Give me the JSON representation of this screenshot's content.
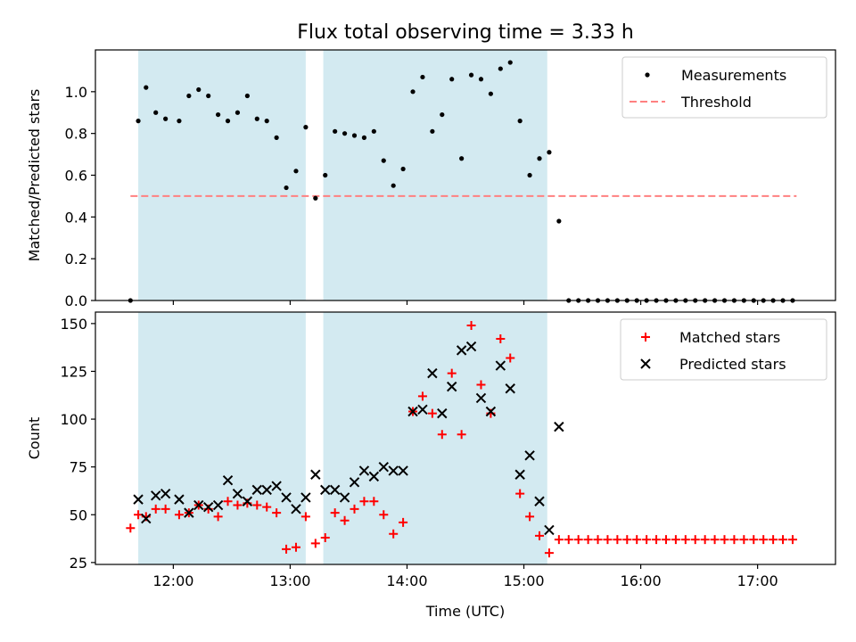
{
  "figure": {
    "title": "Flux total observing time = 3.33 h"
  },
  "chart_data": [
    {
      "type": "scatter",
      "ylabel": "Matched/Predicted stars",
      "xlabel": "",
      "xlim": [
        "11:20",
        "17:40"
      ],
      "ylim": [
        0,
        1.2
      ],
      "yticks": [
        "0.0",
        "0.2",
        "0.4",
        "0.6",
        "0.8",
        "1.0"
      ],
      "xticks": [
        "12:00",
        "13:00",
        "14:00",
        "15:00",
        "16:00",
        "17:00"
      ],
      "xtick_labels_visible": false,
      "legend": {
        "placement": "top-right",
        "entries": [
          "Measurements",
          "Threshold"
        ]
      },
      "shaded_intervals": [
        [
          "11:42",
          "13:08"
        ],
        [
          "13:17",
          "15:12"
        ]
      ],
      "threshold": {
        "name": "Threshold",
        "value": 0.5,
        "x_range": [
          "11:38",
          "17:20"
        ],
        "color": "#ff8080",
        "style": "dashed"
      },
      "series": [
        {
          "name": "Measurements",
          "marker": "dot",
          "color": "#000000",
          "points": [
            [
              "11:38",
              0.0
            ],
            [
              "11:42",
              0.86
            ],
            [
              "11:46",
              1.02
            ],
            [
              "11:51",
              0.9
            ],
            [
              "11:56",
              0.87
            ],
            [
              "12:03",
              0.86
            ],
            [
              "12:08",
              0.98
            ],
            [
              "12:13",
              1.01
            ],
            [
              "12:18",
              0.98
            ],
            [
              "12:23",
              0.89
            ],
            [
              "12:28",
              0.86
            ],
            [
              "12:33",
              0.9
            ],
            [
              "12:38",
              0.98
            ],
            [
              "12:43",
              0.87
            ],
            [
              "12:48",
              0.86
            ],
            [
              "12:53",
              0.78
            ],
            [
              "12:58",
              0.54
            ],
            [
              "13:03",
              0.62
            ],
            [
              "13:08",
              0.83
            ],
            [
              "13:13",
              0.49
            ],
            [
              "13:18",
              0.6
            ],
            [
              "13:23",
              0.81
            ],
            [
              "13:28",
              0.8
            ],
            [
              "13:33",
              0.79
            ],
            [
              "13:38",
              0.78
            ],
            [
              "13:43",
              0.81
            ],
            [
              "13:48",
              0.67
            ],
            [
              "13:53",
              0.55
            ],
            [
              "13:58",
              0.63
            ],
            [
              "14:03",
              1.0
            ],
            [
              "14:08",
              1.07
            ],
            [
              "14:13",
              0.81
            ],
            [
              "14:18",
              0.89
            ],
            [
              "14:23",
              1.06
            ],
            [
              "14:28",
              0.68
            ],
            [
              "14:33",
              1.08
            ],
            [
              "14:38",
              1.06
            ],
            [
              "14:43",
              0.99
            ],
            [
              "14:48",
              1.11
            ],
            [
              "14:53",
              1.14
            ],
            [
              "14:58",
              0.86
            ],
            [
              "15:03",
              0.6
            ],
            [
              "15:08",
              0.68
            ],
            [
              "15:13",
              0.71
            ],
            [
              "15:18",
              0.38
            ],
            [
              "15:23",
              0.0
            ],
            [
              "15:28",
              0.0
            ],
            [
              "15:33",
              0.0
            ],
            [
              "15:38",
              0.0
            ],
            [
              "15:43",
              0.0
            ],
            [
              "15:48",
              0.0
            ],
            [
              "15:53",
              0.0
            ],
            [
              "15:58",
              0.0
            ],
            [
              "16:03",
              0.0
            ],
            [
              "16:08",
              0.0
            ],
            [
              "16:13",
              0.0
            ],
            [
              "16:18",
              0.0
            ],
            [
              "16:23",
              0.0
            ],
            [
              "16:28",
              0.0
            ],
            [
              "16:33",
              0.0
            ],
            [
              "16:38",
              0.0
            ],
            [
              "16:43",
              0.0
            ],
            [
              "16:48",
              0.0
            ],
            [
              "16:53",
              0.0
            ],
            [
              "16:58",
              0.0
            ],
            [
              "17:03",
              0.0
            ],
            [
              "17:08",
              0.0
            ],
            [
              "17:13",
              0.0
            ],
            [
              "17:18",
              0.0
            ]
          ]
        }
      ]
    },
    {
      "type": "scatter",
      "ylabel": "Count",
      "xlabel": "Time (UTC)",
      "xlim": [
        "11:20",
        "17:40"
      ],
      "ylim": [
        24,
        156
      ],
      "yticks": [
        "25",
        "50",
        "75",
        "100",
        "125",
        "150"
      ],
      "xticks": [
        "12:00",
        "13:00",
        "14:00",
        "15:00",
        "16:00",
        "17:00"
      ],
      "xtick_labels_visible": true,
      "legend": {
        "placement": "top-right",
        "entries": [
          "Matched stars",
          "Predicted stars"
        ]
      },
      "shaded_intervals": [
        [
          "11:42",
          "13:08"
        ],
        [
          "13:17",
          "15:12"
        ]
      ],
      "series": [
        {
          "name": "Matched stars",
          "marker": "plus",
          "color": "#ff0000",
          "points": [
            [
              "11:38",
              43
            ],
            [
              "11:42",
              50
            ],
            [
              "11:46",
              49
            ],
            [
              "11:51",
              53
            ],
            [
              "11:56",
              53
            ],
            [
              "12:03",
              50
            ],
            [
              "12:08",
              51
            ],
            [
              "12:13",
              55
            ],
            [
              "12:18",
              53
            ],
            [
              "12:23",
              49
            ],
            [
              "12:28",
              57
            ],
            [
              "12:33",
              55
            ],
            [
              "12:38",
              56
            ],
            [
              "12:43",
              55
            ],
            [
              "12:48",
              54
            ],
            [
              "12:53",
              51
            ],
            [
              "12:58",
              32
            ],
            [
              "13:03",
              33
            ],
            [
              "13:08",
              49
            ],
            [
              "13:13",
              35
            ],
            [
              "13:18",
              38
            ],
            [
              "13:23",
              51
            ],
            [
              "13:28",
              47
            ],
            [
              "13:33",
              53
            ],
            [
              "13:38",
              57
            ],
            [
              "13:43",
              57
            ],
            [
              "13:48",
              50
            ],
            [
              "13:53",
              40
            ],
            [
              "13:58",
              46
            ],
            [
              "14:03",
              104
            ],
            [
              "14:08",
              112
            ],
            [
              "14:13",
              103
            ],
            [
              "14:18",
              92
            ],
            [
              "14:23",
              124
            ],
            [
              "14:28",
              92
            ],
            [
              "14:33",
              149
            ],
            [
              "14:38",
              118
            ],
            [
              "14:43",
              103
            ],
            [
              "14:48",
              142
            ],
            [
              "14:53",
              132
            ],
            [
              "14:58",
              61
            ],
            [
              "15:03",
              49
            ],
            [
              "15:08",
              39
            ],
            [
              "15:13",
              30
            ],
            [
              "15:18",
              37
            ],
            [
              "15:23",
              37
            ],
            [
              "15:28",
              37
            ],
            [
              "15:33",
              37
            ],
            [
              "15:38",
              37
            ],
            [
              "15:43",
              37
            ],
            [
              "15:48",
              37
            ],
            [
              "15:53",
              37
            ],
            [
              "15:58",
              37
            ],
            [
              "16:03",
              37
            ],
            [
              "16:08",
              37
            ],
            [
              "16:13",
              37
            ],
            [
              "16:18",
              37
            ],
            [
              "16:23",
              37
            ],
            [
              "16:28",
              37
            ],
            [
              "16:33",
              37
            ],
            [
              "16:38",
              37
            ],
            [
              "16:43",
              37
            ],
            [
              "16:48",
              37
            ],
            [
              "16:53",
              37
            ],
            [
              "16:58",
              37
            ],
            [
              "17:03",
              37
            ],
            [
              "17:08",
              37
            ],
            [
              "17:13",
              37
            ],
            [
              "17:18",
              37
            ]
          ]
        },
        {
          "name": "Predicted stars",
          "marker": "x",
          "color": "#000000",
          "points": [
            [
              "11:42",
              58
            ],
            [
              "11:46",
              48
            ],
            [
              "11:51",
              60
            ],
            [
              "11:56",
              61
            ],
            [
              "12:03",
              58
            ],
            [
              "12:08",
              51
            ],
            [
              "12:13",
              55
            ],
            [
              "12:18",
              54
            ],
            [
              "12:23",
              55
            ],
            [
              "12:28",
              68
            ],
            [
              "12:33",
              61
            ],
            [
              "12:38",
              57
            ],
            [
              "12:43",
              63
            ],
            [
              "12:48",
              63
            ],
            [
              "12:53",
              65
            ],
            [
              "12:58",
              59
            ],
            [
              "13:03",
              53
            ],
            [
              "13:08",
              59
            ],
            [
              "13:13",
              71
            ],
            [
              "13:18",
              63
            ],
            [
              "13:23",
              63
            ],
            [
              "13:28",
              59
            ],
            [
              "13:33",
              67
            ],
            [
              "13:38",
              73
            ],
            [
              "13:43",
              70
            ],
            [
              "13:48",
              75
            ],
            [
              "13:53",
              73
            ],
            [
              "13:58",
              73
            ],
            [
              "14:03",
              104
            ],
            [
              "14:08",
              105
            ],
            [
              "14:13",
              124
            ],
            [
              "14:18",
              103
            ],
            [
              "14:23",
              117
            ],
            [
              "14:28",
              136
            ],
            [
              "14:33",
              138
            ],
            [
              "14:38",
              111
            ],
            [
              "14:43",
              104
            ],
            [
              "14:48",
              128
            ],
            [
              "14:53",
              116
            ],
            [
              "14:58",
              71
            ],
            [
              "15:03",
              81
            ],
            [
              "15:08",
              57
            ],
            [
              "15:13",
              42
            ],
            [
              "15:18",
              96
            ]
          ]
        }
      ]
    }
  ],
  "colors": {
    "shade": "#d3eaf1",
    "threshold": "#ff8080",
    "matched": "#ff0000",
    "predicted": "#000000",
    "measurements": "#000000"
  }
}
